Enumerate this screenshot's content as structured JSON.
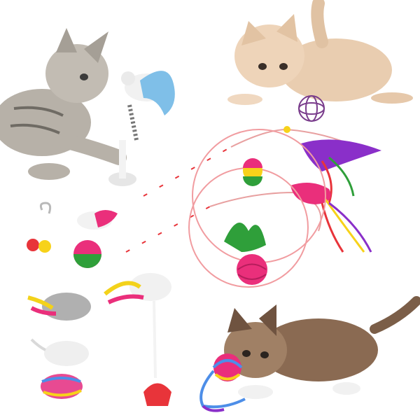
{
  "image": {
    "description_items": [
      "kitten-grey-tabby",
      "kitten-orange",
      "kitten-calico",
      "spring-mouse-toy-blue",
      "feather-wand-toy",
      "mouse-wand-toy",
      "rainbow-ball",
      "wire-ball",
      "bell-keychain",
      "tumbler-mouse-toy",
      "plush-mice",
      "spring-mouse-toy-white",
      "yarn-ball"
    ],
    "colors": {
      "background": "#ffffff",
      "tabby": "#a7a29a",
      "orange_kitten": "#e8c8a6",
      "calico": "#8a6a52",
      "wand_red": "#e8343a",
      "pink_toy": "#ea2f7b",
      "feather_green": "#2f9f3a",
      "feather_blue": "#5aa5e8",
      "yellow": "#f7d21a"
    }
  }
}
